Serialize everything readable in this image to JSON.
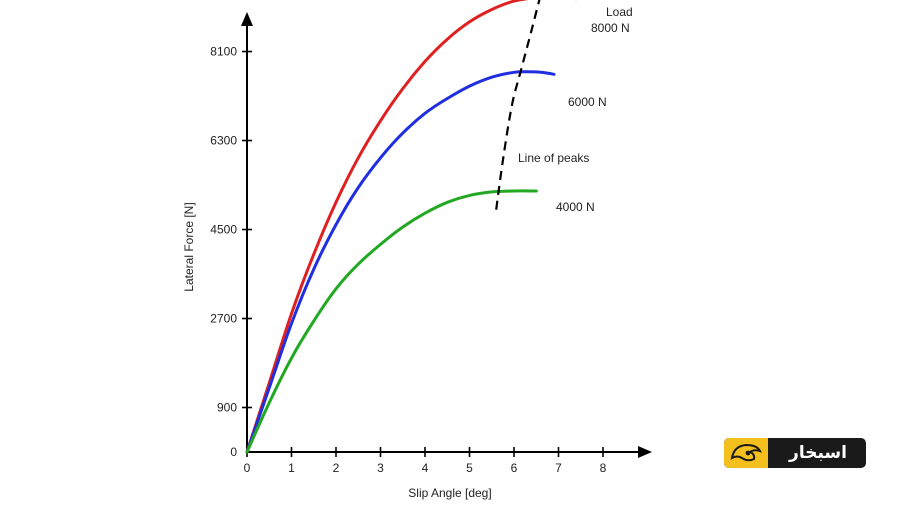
{
  "chart_data": {
    "type": "line",
    "title": "",
    "xlabel": "Slip Angle [deg]",
    "ylabel": "Lateral Force [N]",
    "xlim": [
      0,
      9
    ],
    "ylim": [
      0,
      9000
    ],
    "xticks": [
      0,
      1,
      2,
      3,
      4,
      5,
      6,
      7,
      8
    ],
    "yticks": [
      0,
      900,
      2700,
      4500,
      6300,
      8100
    ],
    "ytick_labels": [
      "0",
      "900",
      "2700",
      "4500",
      "6300",
      "8100"
    ],
    "grid": false,
    "legend_title": "Load",
    "series": [
      {
        "name": "8000 N",
        "color": "#e02020",
        "x": [
          0,
          0.5,
          1,
          1.5,
          2,
          2.5,
          3,
          3.5,
          4,
          4.5,
          5,
          5.5,
          6,
          6.5,
          6.8,
          7.1,
          7.4
        ],
        "y": [
          0,
          1400,
          2800,
          4000,
          5050,
          5950,
          6700,
          7350,
          7900,
          8350,
          8700,
          8950,
          9120,
          9190,
          9200,
          9190,
          9170
        ]
      },
      {
        "name": "6000 N",
        "color": "#1f2fe0",
        "x": [
          0,
          0.5,
          1,
          1.5,
          2,
          2.5,
          3,
          3.5,
          4,
          4.5,
          5,
          5.5,
          6,
          6.3,
          6.6,
          6.9
        ],
        "y": [
          0,
          1300,
          2600,
          3700,
          4600,
          5350,
          5950,
          6450,
          6850,
          7150,
          7400,
          7580,
          7680,
          7690,
          7680,
          7640
        ]
      },
      {
        "name": "4000 N",
        "color": "#22a822",
        "x": [
          0,
          0.5,
          1,
          1.5,
          2,
          2.5,
          3,
          3.5,
          4,
          4.5,
          5,
          5.5,
          6,
          6.5
        ],
        "y": [
          0,
          1000,
          1900,
          2650,
          3300,
          3800,
          4200,
          4550,
          4830,
          5050,
          5190,
          5260,
          5280,
          5280
        ]
      }
    ],
    "peaks_line": {
      "label": "Line of peaks",
      "x": [
        5.6,
        5.75,
        5.95,
        6.15,
        6.4,
        6.6
      ],
      "y": [
        4900,
        5900,
        7000,
        7700,
        8550,
        9250
      ]
    }
  },
  "logo": {
    "text": "اسبخار"
  }
}
